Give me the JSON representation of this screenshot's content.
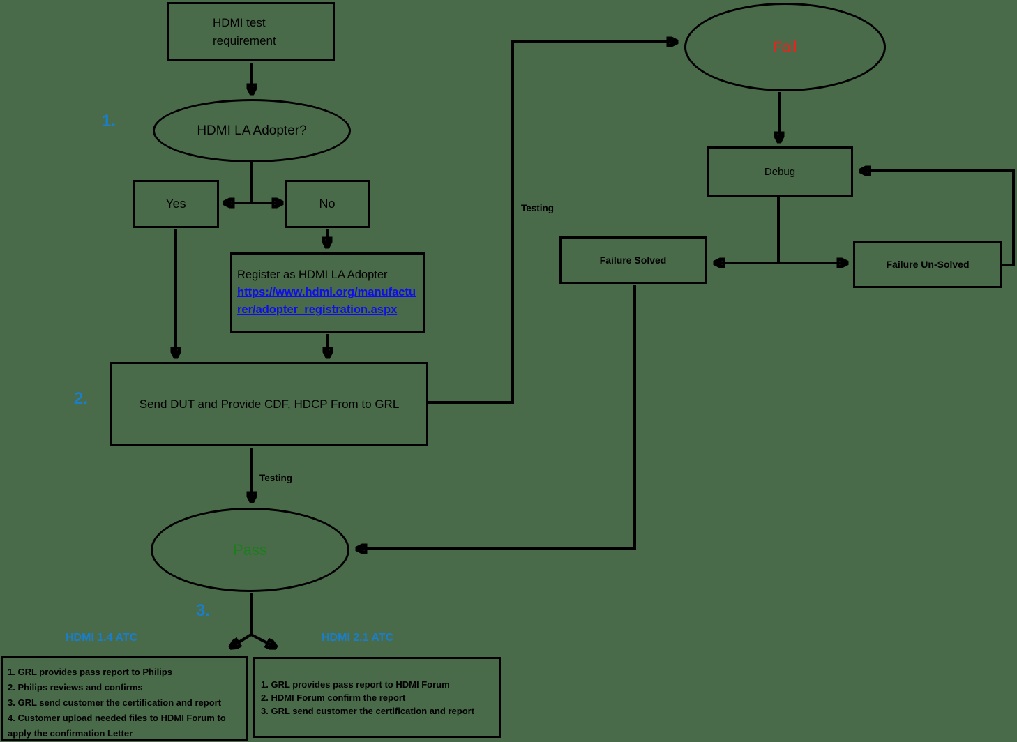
{
  "colors": {
    "background": "#4a6b4a",
    "accent_blue": "#1a7ec9",
    "link_blue": "#0d0dee",
    "fail_red": "#e8231c",
    "pass_green": "#1d7d1d",
    "line": "#000000"
  },
  "steps": {
    "one": "1.",
    "two": "2.",
    "three": "3."
  },
  "nodes": {
    "start": {
      "line1": "HDMI test",
      "line2": "requirement"
    },
    "decision": {
      "label": "HDMI LA Adopter?"
    },
    "yes": {
      "label": "Yes"
    },
    "no": {
      "label": "No"
    },
    "register": {
      "title": "Register as HDMI LA Adopter",
      "link_line1": "https://www.hdmi.org/manufactu",
      "link_line2": "rer/adopter_registration.aspx"
    },
    "send_dut": {
      "label": "Send DUT and Provide CDF, HDCP From to GRL"
    },
    "fail": {
      "label": "Fail"
    },
    "debug": {
      "label": "Debug"
    },
    "failure_solved": {
      "label": "Failure Solved"
    },
    "failure_unsolved": {
      "label": "Failure Un-Solved"
    },
    "pass": {
      "label": "Pass"
    }
  },
  "edge_labels": {
    "testing_to_pass": "Testing",
    "testing_to_fail": "Testing"
  },
  "branches": {
    "atc_14": {
      "title": "HDMI 1.4 ATC",
      "steps": [
        "1. GRL provides pass report to Philips",
        "2. Philips reviews and confirms",
        "3. GRL send customer the certification and report",
        "4. Customer upload needed files to HDMI Forum to apply the confirmation Letter"
      ]
    },
    "atc_21": {
      "title": "HDMI 2.1 ATC",
      "steps": [
        "1. GRL provides pass report to HDMI Forum",
        "2. HDMI Forum confirm the report",
        "3. GRL send customer the certification and report"
      ]
    }
  }
}
